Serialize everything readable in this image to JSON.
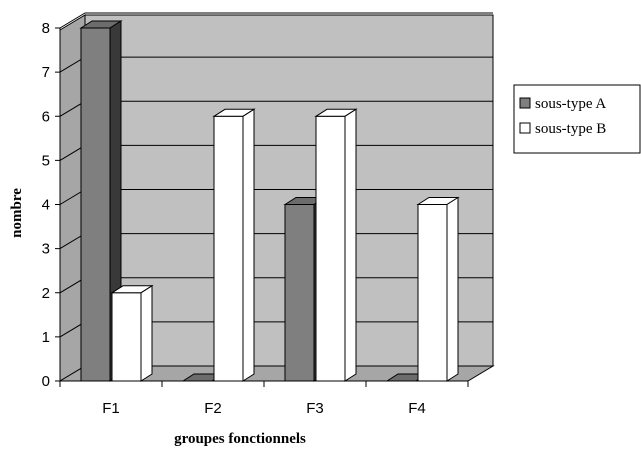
{
  "chart_data": {
    "type": "bar",
    "style": "3d-clustered-column",
    "categories": [
      "F1",
      "F2",
      "F3",
      "F4"
    ],
    "series": [
      {
        "name": "sous-type A",
        "values": [
          8,
          0,
          4,
          0
        ],
        "color": "#7f7f7f"
      },
      {
        "name": "sous-type B",
        "values": [
          2,
          6,
          6,
          4
        ],
        "color": "#ffffff"
      }
    ],
    "xlabel": "groupes fonctionnels",
    "ylabel": "nombre",
    "ylim": [
      0,
      8
    ],
    "yticks": [
      0,
      1,
      2,
      3,
      4,
      5,
      6,
      7,
      8
    ],
    "grid": true,
    "legend_position": "right",
    "plot_background": "#c0c0c0"
  }
}
